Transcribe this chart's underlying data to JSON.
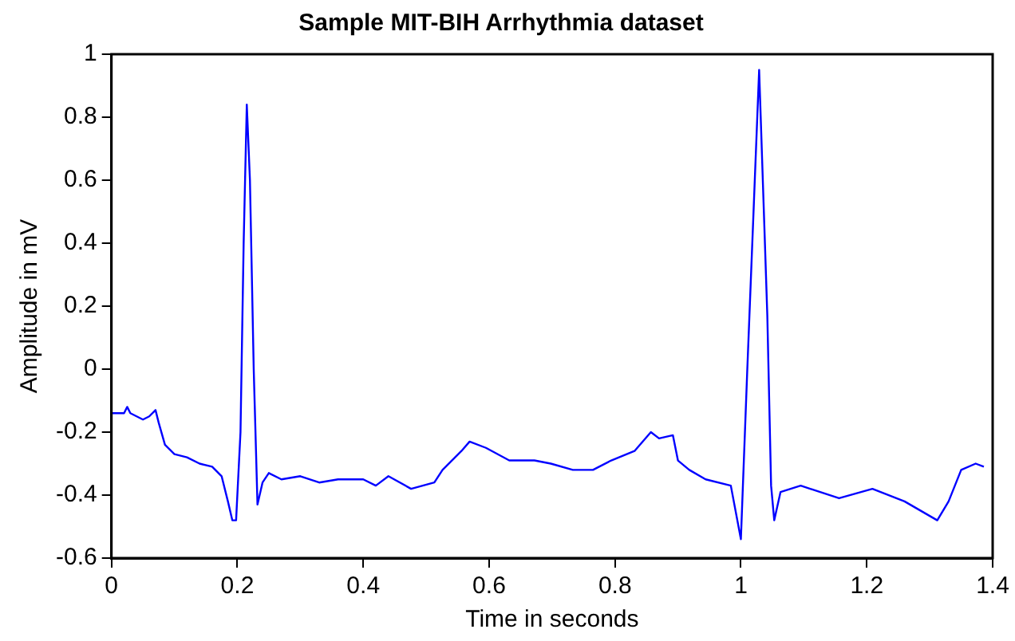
{
  "chart_data": {
    "type": "line",
    "title": "Sample MIT-BIH Arrhythmia dataset",
    "xlabel": "Time in seconds",
    "ylabel": "Amplitude in mV",
    "xlim": [
      0,
      1.4
    ],
    "xticks": [
      0,
      0.2,
      0.4,
      0.6,
      0.8,
      1,
      1.2,
      1.4
    ],
    "ylim": [
      -0.6,
      1
    ],
    "yticks": [
      -0.6,
      -0.4,
      -0.2,
      0,
      0.2,
      0.4,
      0.6,
      0.8,
      1
    ],
    "grid": false,
    "legend": false,
    "marker": "none",
    "line_style": "solid",
    "series": [
      {
        "color": "#0000ff",
        "x": [
          0,
          0.02,
          0.025,
          0.03,
          0.04,
          0.05,
          0.06,
          0.07,
          0.075,
          0.085,
          0.1,
          0.12,
          0.14,
          0.16,
          0.175,
          0.185,
          0.192,
          0.198,
          0.205,
          0.21,
          0.215,
          0.22,
          0.226,
          0.232,
          0.24,
          0.25,
          0.27,
          0.3,
          0.33,
          0.36,
          0.4,
          0.42,
          0.44,
          0.476,
          0.513,
          0.526,
          0.556,
          0.569,
          0.595,
          0.632,
          0.672,
          0.698,
          0.733,
          0.765,
          0.794,
          0.831,
          0.857,
          0.87,
          0.892,
          0.9,
          0.918,
          0.944,
          0.984,
          1.0,
          1.01,
          1.029,
          1.042,
          1.048,
          1.053,
          1.063,
          1.095,
          1.156,
          1.209,
          1.26,
          1.312,
          1.33,
          1.35,
          1.373,
          1.386
        ],
        "values": [
          -0.14,
          -0.14,
          -0.12,
          -0.14,
          -0.15,
          -0.16,
          -0.15,
          -0.13,
          -0.17,
          -0.24,
          -0.27,
          -0.28,
          -0.3,
          -0.31,
          -0.34,
          -0.42,
          -0.48,
          -0.48,
          -0.2,
          0.4,
          0.84,
          0.6,
          0.0,
          -0.43,
          -0.36,
          -0.33,
          -0.35,
          -0.34,
          -0.36,
          -0.35,
          -0.35,
          -0.37,
          -0.34,
          -0.38,
          -0.36,
          -0.32,
          -0.26,
          -0.23,
          -0.25,
          -0.29,
          -0.29,
          -0.3,
          -0.32,
          -0.32,
          -0.29,
          -0.26,
          -0.2,
          -0.22,
          -0.21,
          -0.29,
          -0.32,
          -0.35,
          -0.37,
          -0.54,
          -0.01,
          0.95,
          0.17,
          -0.37,
          -0.48,
          -0.39,
          -0.37,
          -0.41,
          -0.38,
          -0.42,
          -0.48,
          -0.42,
          -0.32,
          -0.3,
          -0.31
        ]
      }
    ]
  }
}
